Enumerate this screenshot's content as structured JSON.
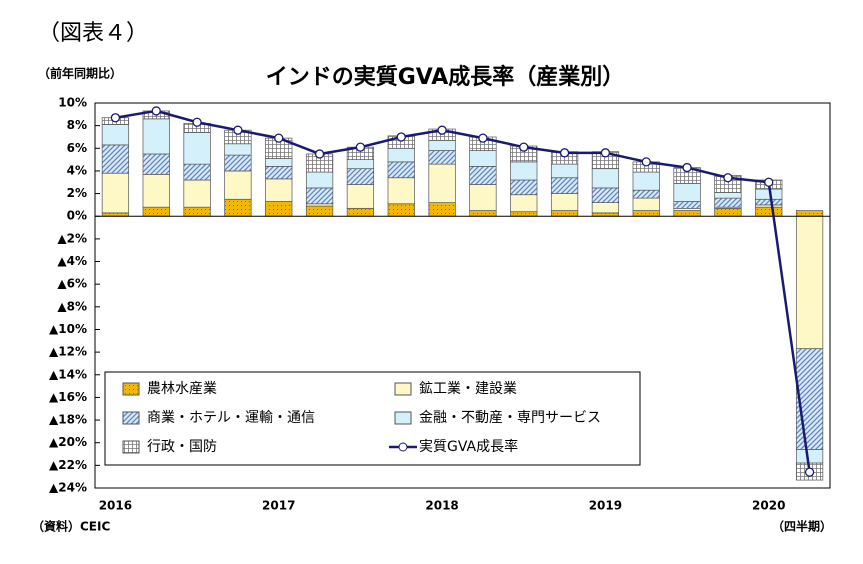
{
  "chart_data": {
    "type": "bar",
    "figure_label": "（図表４）",
    "title": "インドの実質GVA成長率（産業別）",
    "y_unit": "（前年同期比）",
    "source": "（資料）CEIC",
    "x_unit": "（四半期）",
    "categories": [
      "2016",
      null,
      null,
      null,
      "2017",
      null,
      null,
      null,
      "2018",
      null,
      null,
      null,
      "2019",
      null,
      null,
      null,
      "2020",
      null
    ],
    "series": [
      {
        "name": "農林水産業",
        "color": "#f2b705",
        "pattern": "dots",
        "values": [
          0.3,
          0.8,
          0.8,
          1.5,
          1.3,
          0.9,
          0.7,
          1.1,
          1.2,
          0.5,
          0.4,
          0.5,
          0.3,
          0.5,
          0.5,
          0.7,
          0.8,
          0.5
        ]
      },
      {
        "name": "鉱工業・建設業",
        "color": "#fdf8c6",
        "pattern": "solid",
        "values": [
          3.5,
          2.9,
          2.4,
          2.5,
          2.0,
          0.2,
          2.1,
          2.3,
          3.4,
          2.3,
          1.5,
          1.5,
          0.9,
          1.1,
          0.2,
          0.1,
          0.2,
          -11.7
        ]
      },
      {
        "name": "商業・ホテル・運輸・通信",
        "color": "#5b87c2",
        "pattern": "diagonal",
        "values": [
          2.5,
          1.8,
          1.4,
          1.4,
          1.1,
          1.4,
          1.4,
          1.4,
          1.2,
          1.6,
          1.3,
          1.4,
          1.3,
          0.7,
          0.6,
          0.8,
          0.5,
          -8.9
        ]
      },
      {
        "name": "金融・不動産・専門サービス",
        "color": "#d4f1fb",
        "pattern": "solid",
        "values": [
          1.8,
          3.1,
          2.8,
          1.0,
          0.7,
          1.4,
          0.8,
          1.2,
          0.9,
          1.4,
          1.6,
          1.2,
          1.7,
          1.6,
          1.6,
          0.5,
          0.9,
          -1.2
        ]
      },
      {
        "name": "行政・国防",
        "color": "#777777",
        "pattern": "grid",
        "values": [
          0.6,
          0.7,
          0.8,
          1.2,
          1.8,
          1.6,
          1.1,
          1.1,
          1.0,
          1.2,
          1.4,
          1.1,
          1.5,
          0.9,
          1.4,
          1.5,
          0.8,
          -1.5
        ]
      },
      {
        "name": "実質GVA成長率",
        "type": "line",
        "color": "#1a1a72",
        "values": [
          8.7,
          9.3,
          8.3,
          7.6,
          6.9,
          5.5,
          6.1,
          7.0,
          7.6,
          6.9,
          6.1,
          5.6,
          5.6,
          4.8,
          4.3,
          3.4,
          3.0,
          -22.6
        ]
      }
    ],
    "ylim": [
      -24,
      10
    ],
    "yticks": [
      {
        "value": 10,
        "label": "10%"
      },
      {
        "value": 8,
        "label": "8%"
      },
      {
        "value": 6,
        "label": "6%"
      },
      {
        "value": 4,
        "label": "4%"
      },
      {
        "value": 2,
        "label": "2%"
      },
      {
        "value": 0,
        "label": "0%"
      },
      {
        "value": -2,
        "label": "▲2%"
      },
      {
        "value": -4,
        "label": "▲4%"
      },
      {
        "value": -6,
        "label": "▲6%"
      },
      {
        "value": -8,
        "label": "▲8%"
      },
      {
        "value": -10,
        "label": "▲10%"
      },
      {
        "value": -12,
        "label": "▲12%"
      },
      {
        "value": -14,
        "label": "▲14%"
      },
      {
        "value": -16,
        "label": "▲16%"
      },
      {
        "value": -18,
        "label": "▲18%"
      },
      {
        "value": -20,
        "label": "▲20%"
      },
      {
        "value": -22,
        "label": "▲22%"
      },
      {
        "value": -24,
        "label": "▲24%"
      }
    ],
    "grid": false,
    "legend": "lower-left"
  }
}
